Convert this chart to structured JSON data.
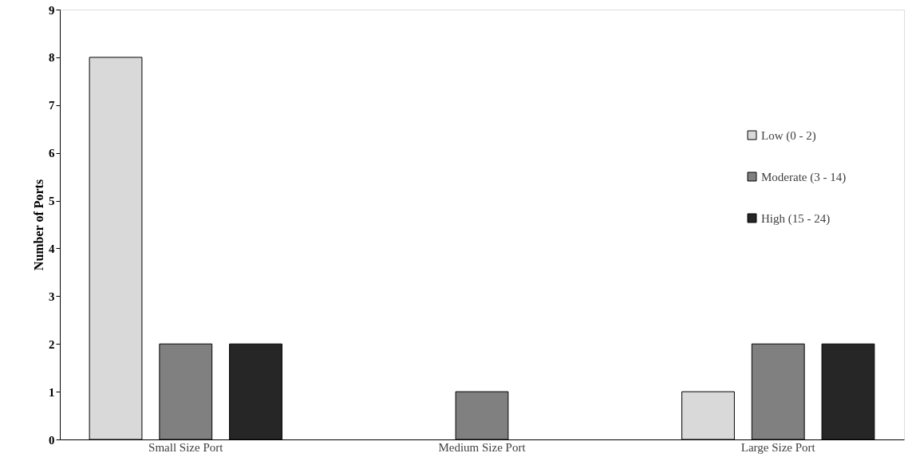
{
  "chart_data": {
    "type": "bar",
    "ylabel": "Number of Ports",
    "categories": [
      "Small Size Port",
      "Medium Size Port",
      "Large Size Port"
    ],
    "series": [
      {
        "name": "Low (0 - 2)",
        "color": "#d9d9d9",
        "values": [
          8,
          null,
          1
        ]
      },
      {
        "name": "Moderate (3 - 14)",
        "color": "#808080",
        "values": [
          2,
          1,
          2
        ]
      },
      {
        "name": "High (15 - 24)",
        "color": "#262626",
        "values": [
          2,
          null,
          2
        ]
      }
    ],
    "ylim": [
      0,
      9
    ],
    "yticks": [
      0,
      1,
      2,
      3,
      4,
      5,
      6,
      7,
      8,
      9
    ],
    "grid": false,
    "legend": "right"
  }
}
